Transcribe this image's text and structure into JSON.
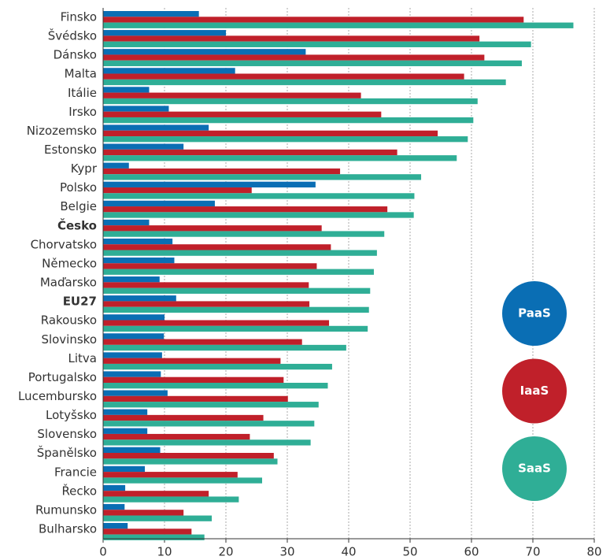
{
  "chart_data": {
    "type": "hbar",
    "categories": [
      "Finsko",
      "Švédsko",
      "Dánsko",
      "Malta",
      "Itálie",
      "Irsko",
      "Nizozemsko",
      "Estonsko",
      "Kypr",
      "Polsko",
      "Belgie",
      "Česko",
      "Chorvatsko",
      "Německo",
      "Maďarsko",
      "EU27",
      "Rakousko",
      "Slovinsko",
      "Litva",
      "Portugalsko",
      "Lucembursko",
      "Lotyšsko",
      "Slovensko",
      "Španělsko",
      "Francie",
      "Řecko",
      "Rumunsko",
      "Bulharsko"
    ],
    "bold_categories": [
      11,
      15
    ],
    "series": [
      {
        "name": "PaaS",
        "color": "#0a6eb4",
        "values": [
          15.6,
          20.0,
          33.0,
          21.5,
          7.5,
          10.7,
          17.2,
          13.1,
          4.2,
          34.6,
          18.2,
          7.5,
          11.3,
          11.6,
          9.2,
          11.9,
          10.0,
          9.9,
          9.6,
          9.4,
          10.5,
          7.2,
          7.2,
          9.3,
          6.8,
          3.6,
          3.5,
          4.0
        ]
      },
      {
        "name": "IaaS",
        "color": "#c0202a",
        "values": [
          68.5,
          61.3,
          62.1,
          58.8,
          42.0,
          45.3,
          54.5,
          47.9,
          38.6,
          24.2,
          46.3,
          35.6,
          37.1,
          34.8,
          33.5,
          33.6,
          36.8,
          32.4,
          28.9,
          29.4,
          30.1,
          26.1,
          23.9,
          27.8,
          21.9,
          17.2,
          13.1,
          14.4
        ]
      },
      {
        "name": "SaaS",
        "color": "#2fae96",
        "values": [
          76.6,
          69.7,
          68.2,
          65.6,
          61.0,
          60.3,
          59.4,
          57.6,
          51.8,
          50.7,
          50.6,
          45.8,
          44.6,
          44.1,
          43.5,
          43.3,
          43.1,
          39.6,
          37.3,
          36.6,
          35.1,
          34.4,
          33.8,
          28.4,
          25.9,
          22.1,
          17.7,
          16.5
        ]
      }
    ],
    "xlim": [
      0,
      80
    ],
    "xticks": [
      0,
      10,
      20,
      30,
      40,
      50,
      60,
      70,
      80
    ],
    "grid": true,
    "legend": "right"
  }
}
